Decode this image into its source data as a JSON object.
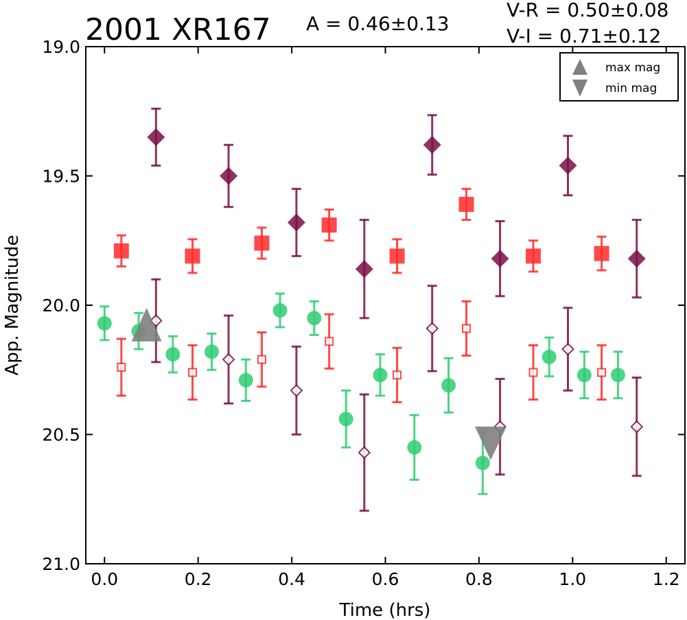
{
  "chart_data": {
    "type": "scatter",
    "title": "2001 XR167",
    "amplitude_text": "A  = 0.46±0.13",
    "color_text_1": "V-R = 0.50±0.08",
    "color_text_2": "V-I  = 0.71±0.12",
    "xlabel": "Time (hrs)",
    "ylabel": "App. Magnitude",
    "xlim": [
      -0.04,
      1.24
    ],
    "ylim": [
      21.0,
      19.0
    ],
    "y_inverted": true,
    "xticks": [
      0.0,
      0.2,
      0.4,
      0.6,
      0.8,
      1.0,
      1.2
    ],
    "xtick_labels": [
      "0.0",
      "0.2",
      "0.4",
      "0.6",
      "0.8",
      "1.0",
      "1.2"
    ],
    "yticks": [
      19.0,
      19.5,
      20.0,
      20.5,
      21.0
    ],
    "ytick_labels": [
      "19.0",
      "19.5",
      "20.0",
      "20.5",
      "21.0"
    ],
    "legend": {
      "placement": "top-right",
      "entries": [
        {
          "label": "max mag",
          "marker": "triangle-up",
          "color": "#808080"
        },
        {
          "label": "min mag",
          "marker": "triangle-down",
          "color": "#808080"
        }
      ]
    },
    "series": [
      {
        "marker": "circle",
        "color": "#2ecc71",
        "alpha": 0.85,
        "filled": true,
        "points": [
          {
            "x": 0.0,
            "y": 20.07,
            "err": 0.065
          },
          {
            "x": 0.073,
            "y": 20.1,
            "err": 0.07
          },
          {
            "x": 0.146,
            "y": 20.19,
            "err": 0.07
          },
          {
            "x": 0.229,
            "y": 20.18,
            "err": 0.07
          },
          {
            "x": 0.302,
            "y": 20.29,
            "err": 0.08
          },
          {
            "x": 0.375,
            "y": 20.02,
            "err": 0.065
          },
          {
            "x": 0.448,
            "y": 20.05,
            "err": 0.065
          },
          {
            "x": 0.516,
            "y": 20.44,
            "err": 0.11
          },
          {
            "x": 0.589,
            "y": 20.27,
            "err": 0.08
          },
          {
            "x": 0.662,
            "y": 20.55,
            "err": 0.125
          },
          {
            "x": 0.735,
            "y": 20.31,
            "err": 0.105
          },
          {
            "x": 0.808,
            "y": 20.61,
            "err": 0.12
          },
          {
            "x": 0.95,
            "y": 20.2,
            "err": 0.075
          },
          {
            "x": 1.025,
            "y": 20.27,
            "err": 0.09
          },
          {
            "x": 1.097,
            "y": 20.27,
            "err": 0.09
          }
        ]
      },
      {
        "marker": "square",
        "color": "#ff2a2a",
        "alpha": 0.85,
        "filled": true,
        "points": [
          {
            "x": 0.036,
            "y": 19.79,
            "err": 0.06
          },
          {
            "x": 0.188,
            "y": 19.81,
            "err": 0.065
          },
          {
            "x": 0.336,
            "y": 19.76,
            "err": 0.06
          },
          {
            "x": 0.48,
            "y": 19.69,
            "err": 0.06
          },
          {
            "x": 0.625,
            "y": 19.81,
            "err": 0.065
          },
          {
            "x": 0.773,
            "y": 19.61,
            "err": 0.06
          },
          {
            "x": 0.916,
            "y": 19.81,
            "err": 0.06
          },
          {
            "x": 1.062,
            "y": 19.8,
            "err": 0.065
          }
        ]
      },
      {
        "marker": "square",
        "color": "#ff2a2a",
        "alpha": 0.85,
        "filled": false,
        "points": [
          {
            "x": 0.036,
            "y": 20.24,
            "err": 0.11
          },
          {
            "x": 0.188,
            "y": 20.26,
            "err": 0.105
          },
          {
            "x": 0.336,
            "y": 20.21,
            "err": 0.105
          },
          {
            "x": 0.48,
            "y": 20.14,
            "err": 0.105
          },
          {
            "x": 0.625,
            "y": 20.27,
            "err": 0.105
          },
          {
            "x": 0.773,
            "y": 20.09,
            "err": 0.105
          },
          {
            "x": 0.916,
            "y": 20.26,
            "err": 0.105
          },
          {
            "x": 1.062,
            "y": 20.26,
            "err": 0.105
          }
        ]
      },
      {
        "marker": "diamond",
        "color": "#7a0f45",
        "alpha": 0.85,
        "filled": true,
        "points": [
          {
            "x": 0.11,
            "y": 19.35,
            "err": 0.11
          },
          {
            "x": 0.265,
            "y": 19.5,
            "err": 0.12
          },
          {
            "x": 0.41,
            "y": 19.68,
            "err": 0.13
          },
          {
            "x": 0.555,
            "y": 19.86,
            "err": 0.19
          },
          {
            "x": 0.7,
            "y": 19.38,
            "err": 0.115
          },
          {
            "x": 0.845,
            "y": 19.82,
            "err": 0.145
          },
          {
            "x": 0.99,
            "y": 19.46,
            "err": 0.115
          },
          {
            "x": 1.137,
            "y": 19.82,
            "err": 0.15
          }
        ]
      },
      {
        "marker": "diamond",
        "color": "#7a0f45",
        "alpha": 0.85,
        "filled": false,
        "points": [
          {
            "x": 0.11,
            "y": 20.06,
            "err": 0.16
          },
          {
            "x": 0.265,
            "y": 20.21,
            "err": 0.17
          },
          {
            "x": 0.41,
            "y": 20.33,
            "err": 0.17
          },
          {
            "x": 0.555,
            "y": 20.57,
            "err": 0.225
          },
          {
            "x": 0.7,
            "y": 20.09,
            "err": 0.165
          },
          {
            "x": 0.845,
            "y": 20.47,
            "err": 0.185
          },
          {
            "x": 0.99,
            "y": 20.17,
            "err": 0.16
          },
          {
            "x": 1.137,
            "y": 20.47,
            "err": 0.19
          }
        ]
      },
      {
        "marker": "triangle-up",
        "color": "#808080",
        "alpha": 0.9,
        "filled": true,
        "big": true,
        "points": [
          {
            "x": 0.09,
            "y": 20.09
          }
        ]
      },
      {
        "marker": "triangle-down",
        "color": "#808080",
        "alpha": 0.9,
        "filled": true,
        "big": true,
        "points": [
          {
            "x": 0.825,
            "y": 20.52
          }
        ]
      }
    ]
  }
}
